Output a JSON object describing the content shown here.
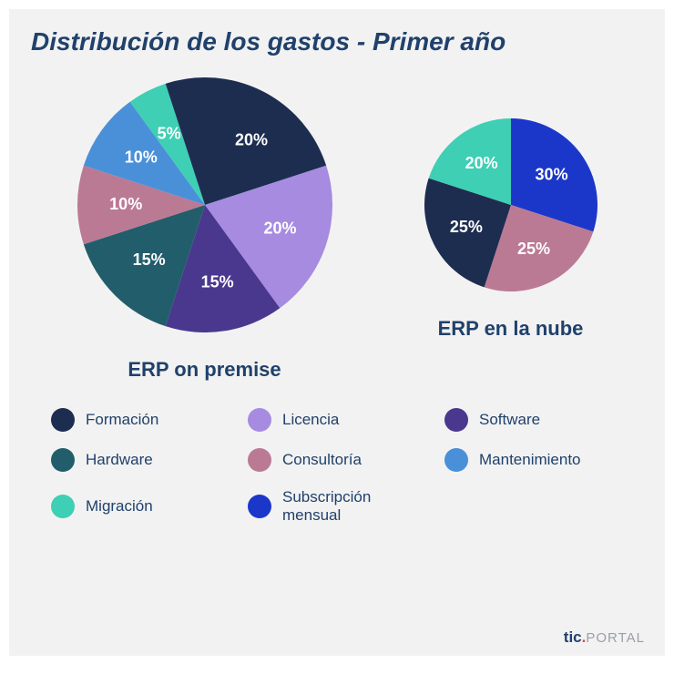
{
  "title": "Distribución de los gastos - Primer año",
  "background_color": "#f2f2f2",
  "text_color": "#20416b",
  "pies": [
    {
      "name": "ERP on premise",
      "radius": 140,
      "label_radius_factor": 0.62,
      "label_fontsize": 18,
      "start_angle_deg": -90,
      "slices": [
        {
          "key": "formacion",
          "value": 20,
          "label": "20%",
          "color": "#1d2d50"
        },
        {
          "key": "licencia",
          "value": 20,
          "label": "20%",
          "color": "#a68be0"
        },
        {
          "key": "software",
          "value": 15,
          "label": "15%",
          "color": "#4a388f"
        },
        {
          "key": "hardware",
          "value": 15,
          "label": "15%",
          "color": "#225d6b"
        },
        {
          "key": "consultoria",
          "value": 10,
          "label": "10%",
          "color": "#bb7a93"
        },
        {
          "key": "mantenimiento",
          "value": 10,
          "label": "10%",
          "color": "#4a90d9"
        },
        {
          "key": "migracion",
          "value": 5,
          "label": "5%",
          "color": "#3ecfb4"
        },
        {
          "key": "pad",
          "value": 5,
          "label": "",
          "color": "#1d2d50"
        }
      ]
    },
    {
      "name": "ERP en la nube",
      "radius": 95,
      "label_radius_factor": 0.58,
      "label_fontsize": 18,
      "start_angle_deg": -90,
      "slices": [
        {
          "key": "subscripcion",
          "value": 30,
          "label": "30%",
          "color": "#1b37c9"
        },
        {
          "key": "consultoria",
          "value": 25,
          "label": "25%",
          "color": "#bb7a93"
        },
        {
          "key": "formacion",
          "value": 25,
          "label": "25%",
          "color": "#1d2d50"
        },
        {
          "key": "migracion",
          "value": 20,
          "label": "20%",
          "color": "#3ecfb4"
        }
      ]
    }
  ],
  "legend": [
    {
      "label": "Formación",
      "color": "#1d2d50"
    },
    {
      "label": "Licencia",
      "color": "#a68be0"
    },
    {
      "label": "Software",
      "color": "#4a388f"
    },
    {
      "label": "Hardware",
      "color": "#225d6b"
    },
    {
      "label": "Consultoría",
      "color": "#bb7a93"
    },
    {
      "label": "Mantenimiento",
      "color": "#4a90d9"
    },
    {
      "label": "Migración",
      "color": "#3ecfb4"
    },
    {
      "label": "Subscripción mensual",
      "color": "#1b37c9"
    }
  ],
  "footer": {
    "brand": "tic",
    "suffix": "PORTAL"
  }
}
